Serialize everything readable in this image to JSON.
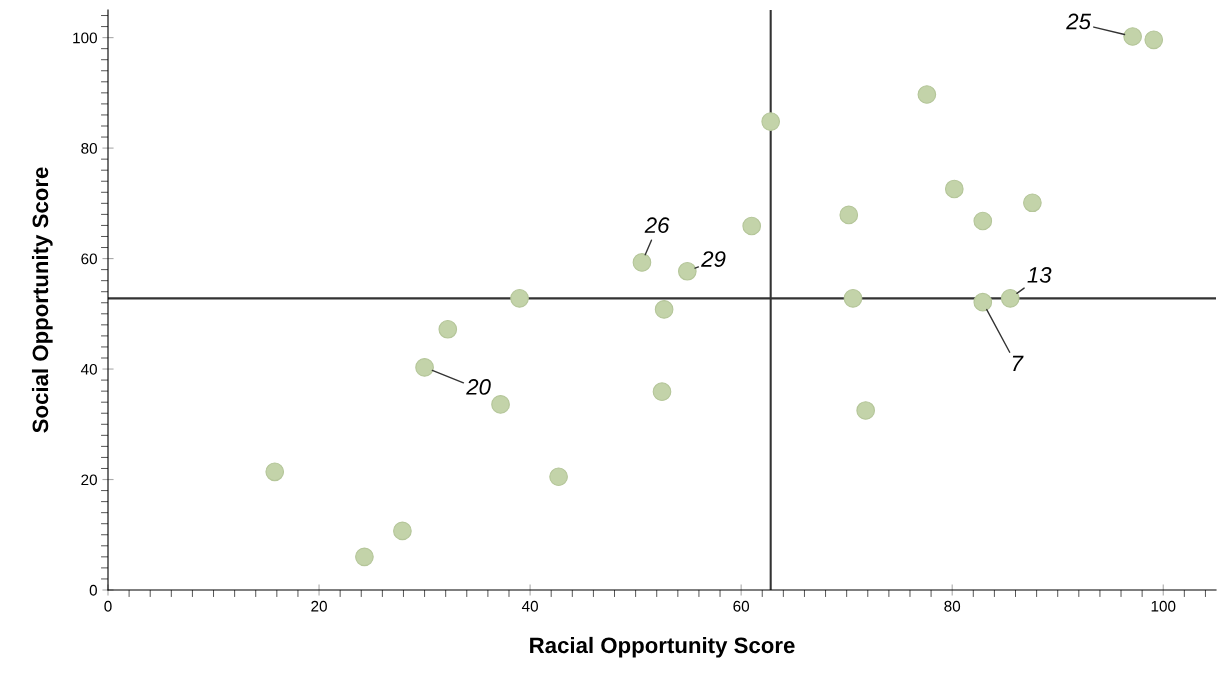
{
  "chart_data": {
    "type": "scatter",
    "xlabel": "Racial Opportunity Score",
    "ylabel": "Social Opportunity Score",
    "x": [
      15.8,
      24.3,
      27.9,
      30.0,
      32.2,
      37.2,
      39.0,
      42.7,
      50.6,
      52.5,
      52.7,
      54.9,
      61.0,
      62.8,
      70.2,
      70.6,
      71.8,
      77.6,
      80.2,
      82.9,
      82.9,
      85.5,
      87.6,
      97.1,
      99.1
    ],
    "series": [
      {
        "color": "#c3d3a9",
        "values": [
          21.4,
          6.0,
          10.7,
          40.3,
          47.2,
          33.6,
          52.8,
          20.5,
          59.3,
          35.9,
          50.8,
          57.7,
          65.9,
          84.8,
          67.9,
          52.8,
          32.5,
          89.7,
          72.6,
          66.8,
          52.1,
          52.8,
          70.1,
          100.2,
          99.6
        ]
      }
    ],
    "marker": "circle",
    "xlim": [
      0,
      105
    ],
    "ylim": [
      0,
      105
    ],
    "xticks": [
      0,
      20,
      40,
      60,
      80,
      100
    ],
    "yticks": [
      0,
      20,
      40,
      60,
      80,
      100
    ],
    "ref_lines": [
      {
        "axis": "x",
        "value": 62.8,
        "color": "#333333"
      },
      {
        "axis": "y",
        "value": 52.8,
        "color": "#333333"
      }
    ],
    "annotations": [
      {
        "text": "25",
        "x": 97.1,
        "y": 100.2
      },
      {
        "text": "26",
        "x": 50.6,
        "y": 59.3
      },
      {
        "text": "29",
        "x": 54.9,
        "y": 57.7
      },
      {
        "text": "13",
        "x": 85.5,
        "y": 52.8
      },
      {
        "text": "7",
        "x": 82.9,
        "y": 52.1
      },
      {
        "text": "20",
        "x": 30.0,
        "y": 40.3
      }
    ],
    "grid": false,
    "legend": false
  }
}
